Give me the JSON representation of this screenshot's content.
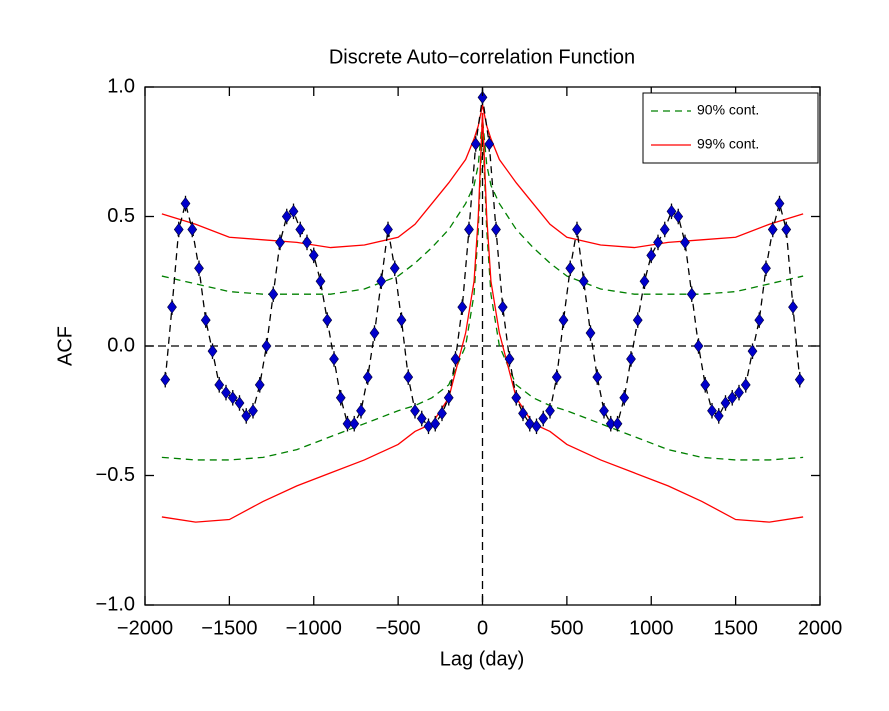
{
  "chart_data": {
    "type": "scatter",
    "title": "Discrete Auto−correlation Function",
    "x_label": "Lag (day)",
    "y_label": "ACF",
    "xlim": [
      -2000,
      2000
    ],
    "ylim": [
      -1,
      1
    ],
    "xticks": [
      {
        "value": -2000,
        "label": "−2000"
      },
      {
        "value": -1500,
        "label": "−1500"
      },
      {
        "value": -1000,
        "label": "−1000"
      },
      {
        "value": -500,
        "label": "−500"
      },
      0,
      500,
      1000,
      1500,
      2000
    ],
    "yticks": [
      {
        "value": -1,
        "label": "−1.0"
      },
      {
        "value": -0.5,
        "label": "−0.5"
      },
      {
        "value": 0,
        "label": "0.0"
      },
      {
        "value": 0.5,
        "label": "0.5"
      },
      {
        "value": 1,
        "label": "1.0"
      }
    ],
    "hline": 0,
    "vline": 0,
    "legend": "upper right",
    "acf": {
      "color": "#0000cc",
      "x": [
        -1880,
        -1840,
        -1800,
        -1760,
        -1720,
        -1680,
        -1640,
        -1600,
        -1560,
        -1520,
        -1480,
        -1440,
        -1400,
        -1360,
        -1320,
        -1280,
        -1240,
        -1200,
        -1160,
        -1120,
        -1080,
        -1040,
        -1000,
        -960,
        -920,
        -880,
        -840,
        -800,
        -760,
        -720,
        -680,
        -640,
        -600,
        -560,
        -520,
        -480,
        -440,
        -400,
        -360,
        -320,
        -280,
        -240,
        -200,
        -160,
        -120,
        -80,
        -40,
        0,
        40,
        80,
        120,
        160,
        200,
        240,
        280,
        320,
        360,
        400,
        440,
        480,
        520,
        560,
        600,
        640,
        680,
        720,
        760,
        800,
        840,
        880,
        920,
        960,
        1000,
        1040,
        1080,
        1120,
        1160,
        1200,
        1240,
        1280,
        1320,
        1360,
        1400,
        1440,
        1480,
        1520,
        1560,
        1600,
        1640,
        1680,
        1720,
        1760,
        1800,
        1840,
        1880
      ],
      "values": [
        -0.13,
        0.15,
        0.45,
        0.55,
        0.45,
        0.3,
        0.1,
        -0.02,
        -0.15,
        -0.18,
        -0.2,
        -0.22,
        -0.27,
        -0.25,
        -0.15,
        0,
        0.2,
        0.4,
        0.5,
        0.52,
        0.45,
        0.4,
        0.35,
        0.25,
        0.1,
        -0.05,
        -0.2,
        -0.3,
        -0.3,
        -0.25,
        -0.12,
        0.05,
        0.25,
        0.45,
        0.3,
        0.1,
        -0.12,
        -0.25,
        -0.28,
        -0.31,
        -0.3,
        -0.26,
        -0.2,
        -0.05,
        0.15,
        0.45,
        0.78,
        0.96,
        0.78,
        0.45,
        0.15,
        -0.05,
        -0.2,
        -0.26,
        -0.3,
        -0.31,
        -0.28,
        -0.25,
        -0.12,
        0.1,
        0.3,
        0.45,
        0.25,
        0.05,
        -0.12,
        -0.25,
        -0.3,
        -0.3,
        -0.2,
        -0.05,
        0.1,
        0.25,
        0.35,
        0.4,
        0.45,
        0.52,
        0.5,
        0.4,
        0.2,
        0,
        -0.15,
        -0.25,
        -0.27,
        -0.22,
        -0.2,
        -0.18,
        -0.15,
        -0.02,
        0.1,
        0.3,
        0.45,
        0.55,
        0.45,
        0.15,
        -0.13
      ],
      "errors": [
        0.03,
        0.03,
        0.03,
        0.03,
        0.03,
        0.03,
        0.03,
        0.03,
        0.03,
        0.03,
        0.03,
        0.03,
        0.03,
        0.03,
        0.03,
        0.03,
        0.03,
        0.03,
        0.03,
        0.03,
        0.03,
        0.03,
        0.03,
        0.03,
        0.03,
        0.03,
        0.03,
        0.03,
        0.03,
        0.03,
        0.03,
        0.03,
        0.03,
        0.03,
        0.03,
        0.03,
        0.03,
        0.03,
        0.03,
        0.03,
        0.03,
        0.03,
        0.03,
        0.03,
        0.03,
        0.03,
        0.03,
        0.03,
        0.03,
        0.03,
        0.03,
        0.03,
        0.03,
        0.03,
        0.03,
        0.03,
        0.03,
        0.03,
        0.03,
        0.03,
        0.03,
        0.03,
        0.03,
        0.03,
        0.03,
        0.03,
        0.03,
        0.03,
        0.03,
        0.03,
        0.03,
        0.03,
        0.03,
        0.03,
        0.03,
        0.03,
        0.03,
        0.03,
        0.03,
        0.03,
        0.03,
        0.03,
        0.03,
        0.03,
        0.03,
        0.03,
        0.03,
        0.03,
        0.03,
        0.03,
        0.03,
        0.03,
        0.03,
        0.03,
        0.03
      ]
    },
    "series": [
      {
        "name": "90% cont.",
        "color": "#008000",
        "dashed": true,
        "x": [
          -1900,
          -1700,
          -1500,
          -1300,
          -1100,
          -900,
          -700,
          -500,
          -400,
          -300,
          -200,
          -100,
          -50,
          -25,
          0,
          25,
          50,
          100,
          200,
          300,
          400,
          500,
          700,
          900,
          1100,
          1300,
          1500,
          1700,
          1900
        ],
        "upper": [
          0.27,
          0.24,
          0.21,
          0.2,
          0.2,
          0.2,
          0.22,
          0.27,
          0.32,
          0.38,
          0.45,
          0.55,
          0.62,
          0.7,
          0.88,
          0.7,
          0.62,
          0.55,
          0.45,
          0.38,
          0.32,
          0.27,
          0.22,
          0.2,
          0.2,
          0.2,
          0.21,
          0.24,
          0.27
        ],
        "lower": [
          -0.43,
          -0.44,
          -0.44,
          -0.43,
          -0.4,
          -0.35,
          -0.3,
          -0.25,
          -0.23,
          -0.2,
          -0.15,
          0,
          0.2,
          0.45,
          0.85,
          0.45,
          0.2,
          0,
          -0.15,
          -0.2,
          -0.23,
          -0.25,
          -0.3,
          -0.35,
          -0.4,
          -0.43,
          -0.44,
          -0.44,
          -0.43
        ]
      },
      {
        "name": "99% cont.",
        "color": "#ff0000",
        "dashed": false,
        "x": [
          -1900,
          -1700,
          -1500,
          -1300,
          -1100,
          -900,
          -700,
          -500,
          -400,
          -300,
          -200,
          -100,
          -50,
          -25,
          0,
          25,
          50,
          100,
          200,
          300,
          400,
          500,
          700,
          900,
          1100,
          1300,
          1500,
          1700,
          1900
        ],
        "upper": [
          0.51,
          0.47,
          0.42,
          0.41,
          0.4,
          0.38,
          0.39,
          0.42,
          0.47,
          0.55,
          0.63,
          0.72,
          0.8,
          0.85,
          0.93,
          0.85,
          0.8,
          0.72,
          0.63,
          0.55,
          0.47,
          0.42,
          0.39,
          0.38,
          0.4,
          0.41,
          0.42,
          0.47,
          0.51
        ],
        "lower": [
          -0.66,
          -0.68,
          -0.67,
          -0.6,
          -0.54,
          -0.49,
          -0.44,
          -0.38,
          -0.33,
          -0.3,
          -0.2,
          0.05,
          0.25,
          0.5,
          0.9,
          0.5,
          0.25,
          0.05,
          -0.2,
          -0.3,
          -0.33,
          -0.38,
          -0.44,
          -0.49,
          -0.54,
          -0.6,
          -0.67,
          -0.68,
          -0.66
        ]
      }
    ]
  }
}
